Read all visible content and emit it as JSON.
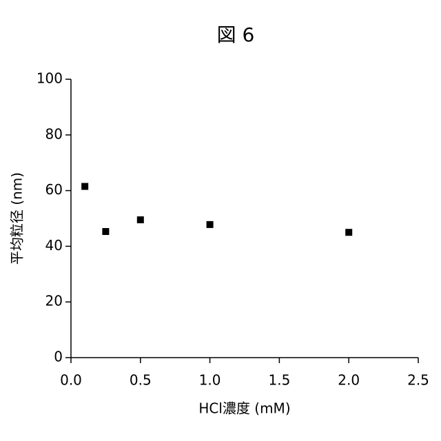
{
  "chart_data": {
    "type": "scatter",
    "title": "図 6",
    "xlabel": "HCl濃度 (mM)",
    "ylabel": "平均粒径 (nm)",
    "series": [
      {
        "x": [
          0.1,
          0.25,
          0.5,
          1.0,
          2.0
        ],
        "values": [
          61.5,
          45.3,
          49.5,
          47.8,
          45.0
        ],
        "color": "#000000"
      }
    ],
    "xlim": [
      0,
      2.5
    ],
    "ylim": [
      0,
      100
    ],
    "xticks": [
      {
        "value": 0,
        "label": "0.0"
      },
      0.5,
      {
        "value": 1,
        "label": "1.0"
      },
      1.5,
      {
        "value": 2,
        "label": "2.0"
      },
      2.5
    ],
    "yticks": [
      0,
      20,
      40,
      60,
      80,
      100
    ]
  }
}
